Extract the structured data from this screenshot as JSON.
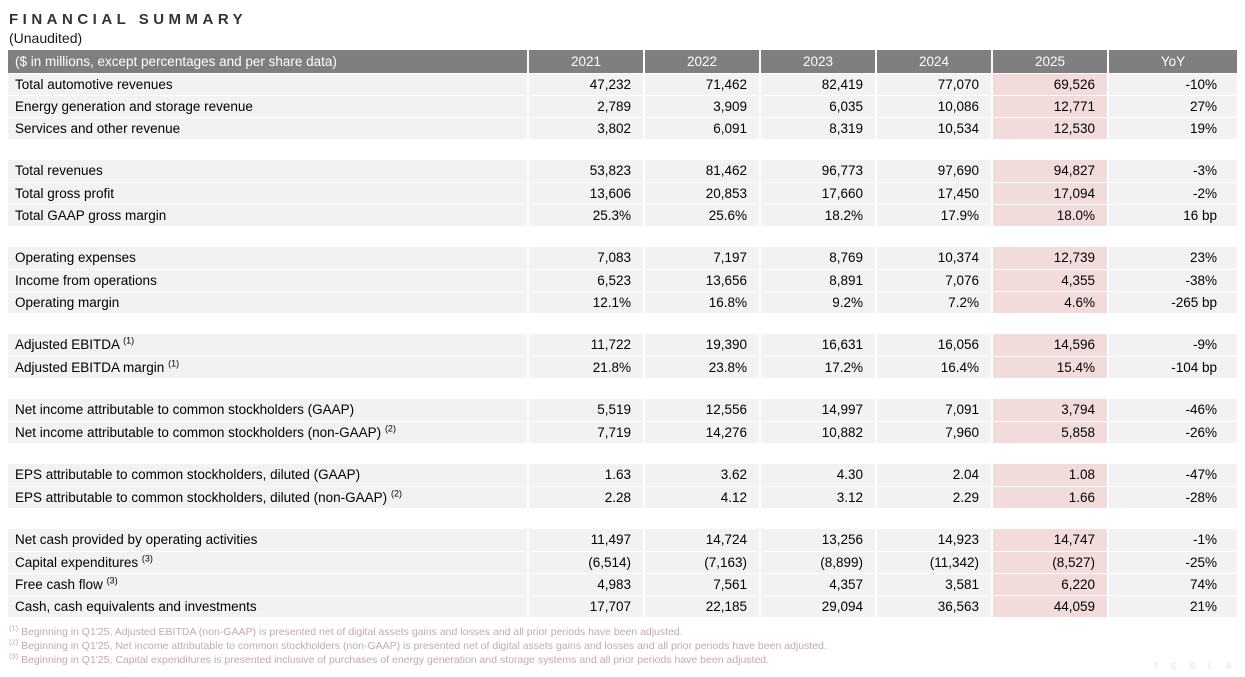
{
  "page": {
    "title": "FINANCIAL SUMMARY",
    "subtitle": "(Unaudited)",
    "watermark": "T E S L A"
  },
  "colors": {
    "header_bg": "#7f7f7f",
    "header_text": "#ffffff",
    "row_bg": "#f2f2f2",
    "highlight_bg": "#f2dcdb",
    "footnote_text": "#c6a8a8"
  },
  "table": {
    "header_label": "($ in millions, except percentages and per share data)",
    "year_columns": [
      "2021",
      "2022",
      "2023",
      "2024",
      "2025",
      "YoY"
    ],
    "highlight_column": "2025",
    "rows": [
      {
        "type": "data",
        "label": "Total automotive revenues",
        "sup": "",
        "values": [
          "47,232",
          "71,462",
          "82,419",
          "77,070",
          "69,526",
          "-10%"
        ]
      },
      {
        "type": "data",
        "label": "Energy generation and storage revenue",
        "sup": "",
        "values": [
          "2,789",
          "3,909",
          "6,035",
          "10,086",
          "12,771",
          "27%"
        ]
      },
      {
        "type": "data",
        "label": "Services and other revenue",
        "sup": "",
        "values": [
          "3,802",
          "6,091",
          "8,319",
          "10,534",
          "12,530",
          "19%"
        ]
      },
      {
        "type": "spacer"
      },
      {
        "type": "data",
        "label": "Total revenues",
        "sup": "",
        "values": [
          "53,823",
          "81,462",
          "96,773",
          "97,690",
          "94,827",
          "-3%"
        ]
      },
      {
        "type": "data",
        "label": "Total gross profit",
        "sup": "",
        "values": [
          "13,606",
          "20,853",
          "17,660",
          "17,450",
          "17,094",
          "-2%"
        ]
      },
      {
        "type": "data",
        "label": "Total GAAP gross margin",
        "sup": "",
        "values": [
          "25.3%",
          "25.6%",
          "18.2%",
          "17.9%",
          "18.0%",
          "16 bp"
        ]
      },
      {
        "type": "spacer"
      },
      {
        "type": "data",
        "label": "Operating expenses",
        "sup": "",
        "values": [
          "7,083",
          "7,197",
          "8,769",
          "10,374",
          "12,739",
          "23%"
        ]
      },
      {
        "type": "data",
        "label": "Income from operations",
        "sup": "",
        "values": [
          "6,523",
          "13,656",
          "8,891",
          "7,076",
          "4,355",
          "-38%"
        ]
      },
      {
        "type": "data",
        "label": "Operating margin",
        "sup": "",
        "values": [
          "12.1%",
          "16.8%",
          "9.2%",
          "7.2%",
          "4.6%",
          "-265 bp"
        ]
      },
      {
        "type": "spacer"
      },
      {
        "type": "data",
        "label": "Adjusted EBITDA",
        "sup": "(1)",
        "values": [
          "11,722",
          "19,390",
          "16,631",
          "16,056",
          "14,596",
          "-9%"
        ]
      },
      {
        "type": "data",
        "label": "Adjusted EBITDA margin",
        "sup": "(1)",
        "values": [
          "21.8%",
          "23.8%",
          "17.2%",
          "16.4%",
          "15.4%",
          "-104 bp"
        ]
      },
      {
        "type": "spacer"
      },
      {
        "type": "data",
        "label": "Net income attributable to common stockholders (GAAP)",
        "sup": "",
        "values": [
          "5,519",
          "12,556",
          "14,997",
          "7,091",
          "3,794",
          "-46%"
        ]
      },
      {
        "type": "data",
        "label": "Net income attributable to common stockholders (non-GAAP)",
        "sup": "(2)",
        "values": [
          "7,719",
          "14,276",
          "10,882",
          "7,960",
          "5,858",
          "-26%"
        ]
      },
      {
        "type": "spacer"
      },
      {
        "type": "data",
        "label": "EPS attributable to common stockholders, diluted (GAAP)",
        "sup": "",
        "values": [
          "1.63",
          "3.62",
          "4.30",
          "2.04",
          "1.08",
          "-47%"
        ]
      },
      {
        "type": "data",
        "label": "EPS attributable to common stockholders, diluted (non-GAAP)",
        "sup": "(2)",
        "values": [
          "2.28",
          "4.12",
          "3.12",
          "2.29",
          "1.66",
          "-28%"
        ]
      },
      {
        "type": "spacer"
      },
      {
        "type": "data",
        "label": "Net cash provided by operating activities",
        "sup": "",
        "values": [
          "11,497",
          "14,724",
          "13,256",
          "14,923",
          "14,747",
          "-1%"
        ]
      },
      {
        "type": "data",
        "label": "Capital expenditures",
        "sup": "(3)",
        "values": [
          "(6,514)",
          "(7,163)",
          "(8,899)",
          "(11,342)",
          "(8,527)",
          "-25%"
        ]
      },
      {
        "type": "data",
        "label": "Free cash flow",
        "sup": "(3)",
        "values": [
          "4,983",
          "7,561",
          "4,357",
          "3,581",
          "6,220",
          "74%"
        ]
      },
      {
        "type": "data",
        "label": "Cash, cash equivalents and investments",
        "sup": "",
        "values": [
          "17,707",
          "22,185",
          "29,094",
          "36,563",
          "44,059",
          "21%"
        ]
      }
    ]
  },
  "footnotes": [
    {
      "marker": "(1)",
      "text": "Beginning in Q1'25, Adjusted EBITDA (non-GAAP) is presented net of digital assets gains and losses and all prior periods have been adjusted."
    },
    {
      "marker": "(2)",
      "text": "Beginning in Q1'25, Net income attributable to common stockholders (non-GAAP) is presented net of digital assets gains and losses and all prior periods have been adjusted."
    },
    {
      "marker": "(3)",
      "text": "Beginning in Q1'25, Capital expenditures is presented inclusive of purchases of energy generation and storage systems and all prior periods have been adjusted."
    }
  ]
}
